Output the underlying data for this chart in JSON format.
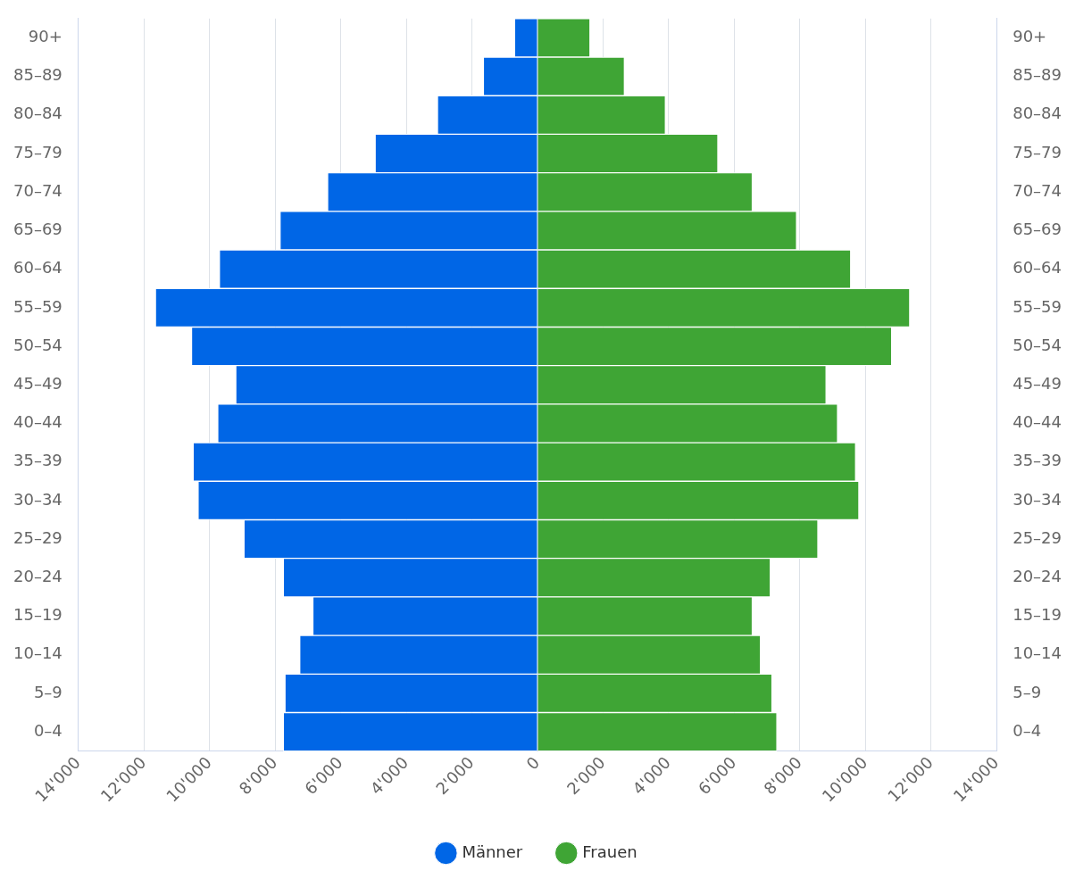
{
  "chart_data": {
    "type": "bar",
    "orientation": "horizontal",
    "stacked": true,
    "categories": [
      "90+",
      "85–89",
      "80–84",
      "75–79",
      "70–74",
      "65–69",
      "60–64",
      "55–59",
      "50–54",
      "45–49",
      "40–44",
      "35–39",
      "30–34",
      "25–29",
      "20–24",
      "15–19",
      "10–14",
      "5–9",
      "0–4"
    ],
    "series": [
      {
        "name": "Männer",
        "color": "#0066e6",
        "values": [
          -700,
          -1650,
          -3050,
          -4950,
          -6400,
          -7850,
          -9700,
          -11650,
          -10550,
          -9200,
          -9750,
          -10500,
          -10350,
          -8950,
          -7750,
          -6850,
          -7250,
          -7700,
          -7750
        ]
      },
      {
        "name": "Frauen",
        "color": "#3fa535",
        "values": [
          1600,
          2650,
          3900,
          5500,
          6550,
          7900,
          9550,
          11350,
          10800,
          8800,
          9150,
          9700,
          9800,
          8550,
          7100,
          6550,
          6800,
          7150,
          7300
        ]
      }
    ],
    "xlim": [
      -14000,
      14000
    ],
    "xticks": [
      {
        "value": -14000,
        "label": "14'000"
      },
      {
        "value": -12000,
        "label": "12'000"
      },
      {
        "value": -10000,
        "label": "10'000"
      },
      {
        "value": -8000,
        "label": "8'000"
      },
      {
        "value": -6000,
        "label": "6'000"
      },
      {
        "value": -4000,
        "label": "4'000"
      },
      {
        "value": -2000,
        "label": "2'000"
      },
      0,
      {
        "value": 2000,
        "label": "2'000"
      },
      {
        "value": 4000,
        "label": "4'000"
      },
      {
        "value": 6000,
        "label": "6'000"
      },
      {
        "value": 8000,
        "label": "8'000"
      },
      {
        "value": 10000,
        "label": "10'000"
      },
      {
        "value": 12000,
        "label": "12'000"
      },
      {
        "value": 14000,
        "label": "14'000"
      }
    ],
    "grid": "x",
    "legend": "bottom"
  }
}
